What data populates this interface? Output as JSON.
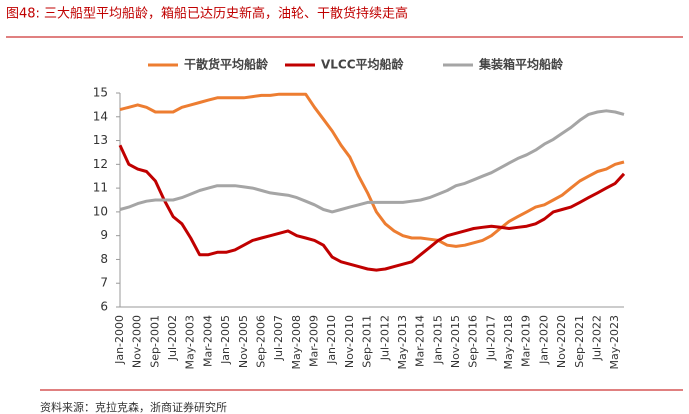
{
  "chart_data": {
    "type": "line",
    "title": "图48:  三大船型平均船龄，箱船已达历史新高，油轮、干散货持续走高",
    "source": "资料来源：克拉克森，浙商证券研究所",
    "categories": [
      "Jan-2000",
      null,
      "Nov-2000",
      null,
      "Sep-2001",
      null,
      "Jul-2002",
      null,
      "May-2003",
      null,
      "Mar-2004",
      null,
      "Jan-2005",
      null,
      "Nov-2005",
      null,
      "Sep-2006",
      null,
      "Jul-2007",
      null,
      "May-2008",
      null,
      "Mar-2009",
      null,
      "Jan-2010",
      null,
      "Nov-2010",
      null,
      "Sep-2011",
      null,
      "Jul-2012",
      null,
      "May-2013",
      null,
      "Mar-2014",
      null,
      "Jan-2015",
      null,
      "Nov-2015",
      null,
      "Sep-2016",
      null,
      "Jul-2017",
      null,
      "May-2018",
      null,
      "Mar-2019",
      null,
      "Jan-2020",
      null,
      "Nov-2020",
      null,
      "Sep-2021",
      null,
      "Jul-2022",
      null,
      "May-2023",
      null
    ],
    "series": [
      {
        "name": "干散货平均船龄",
        "color": "#ED7D31",
        "values": [
          14.3,
          14.4,
          14.5,
          14.4,
          14.2,
          14.2,
          14.2,
          14.4,
          14.5,
          14.6,
          14.7,
          14.8,
          14.8,
          14.8,
          14.8,
          14.85,
          14.9,
          14.9,
          14.95,
          14.95,
          14.95,
          14.95,
          14.4,
          13.9,
          13.4,
          12.8,
          12.3,
          11.5,
          10.8,
          10.0,
          9.5,
          9.2,
          9.0,
          8.9,
          8.9,
          8.85,
          8.8,
          8.6,
          8.55,
          8.6,
          8.7,
          8.8,
          9.0,
          9.3,
          9.6,
          9.8,
          10.0,
          10.2,
          10.3,
          10.5,
          10.7,
          11.0,
          11.3,
          11.5,
          11.7,
          11.8,
          12.0,
          12.1
        ]
      },
      {
        "name": "VLCC平均船龄",
        "color": "#C00000",
        "values": [
          12.8,
          12.0,
          11.8,
          11.7,
          11.3,
          10.5,
          9.8,
          9.5,
          8.9,
          8.2,
          8.2,
          8.3,
          8.3,
          8.4,
          8.6,
          8.8,
          8.9,
          9.0,
          9.1,
          9.2,
          9.0,
          8.9,
          8.8,
          8.6,
          8.1,
          7.9,
          7.8,
          7.7,
          7.6,
          7.55,
          7.6,
          7.7,
          7.8,
          7.9,
          8.2,
          8.5,
          8.8,
          9.0,
          9.1,
          9.2,
          9.3,
          9.35,
          9.4,
          9.35,
          9.3,
          9.35,
          9.4,
          9.5,
          9.7,
          10.0,
          10.1,
          10.2,
          10.4,
          10.6,
          10.8,
          11.0,
          11.2,
          11.6
        ]
      },
      {
        "name": "集装箱平均船龄",
        "color": "#A5A5A5",
        "values": [
          10.1,
          10.2,
          10.35,
          10.45,
          10.5,
          10.5,
          10.5,
          10.6,
          10.75,
          10.9,
          11.0,
          11.1,
          11.1,
          11.1,
          11.05,
          11.0,
          10.9,
          10.8,
          10.75,
          10.7,
          10.6,
          10.45,
          10.3,
          10.1,
          10.0,
          10.1,
          10.2,
          10.3,
          10.4,
          10.4,
          10.4,
          10.4,
          10.4,
          10.45,
          10.5,
          10.6,
          10.75,
          10.9,
          11.1,
          11.2,
          11.35,
          11.5,
          11.65,
          11.85,
          12.05,
          12.25,
          12.4,
          12.6,
          12.85,
          13.05,
          13.3,
          13.55,
          13.85,
          14.1,
          14.2,
          14.25,
          14.2,
          14.1
        ]
      }
    ],
    "ylim": [
      6,
      15
    ],
    "yticks": [
      6,
      7,
      8,
      9,
      10,
      11,
      12,
      13,
      14,
      15
    ],
    "grid": false
  }
}
